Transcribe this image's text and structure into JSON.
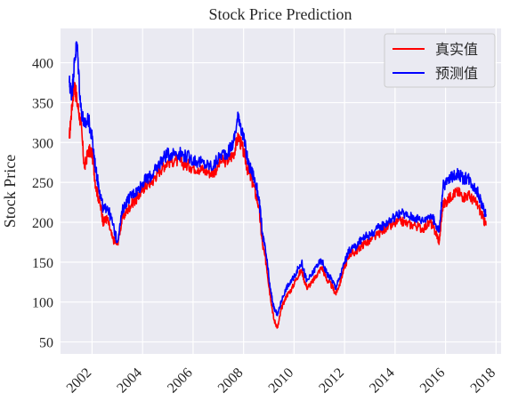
{
  "chart_data": {
    "type": "line",
    "title": "Stock Price Prediction",
    "xlabel": "",
    "ylabel": "Stock Price",
    "xlim": [
      2000.75,
      2018.2
    ],
    "ylim": [
      35,
      443
    ],
    "x_ticks": [
      2002,
      2004,
      2006,
      2008,
      2010,
      2012,
      2014,
      2016,
      2018
    ],
    "y_ticks": [
      50,
      100,
      150,
      200,
      250,
      300,
      350,
      400
    ],
    "grid": true,
    "legend_position": "top-right",
    "colors": {
      "actual": "#ff0000",
      "predicted": "#0000ff",
      "background": "#eaeaf2",
      "grid": "#ffffff"
    },
    "series": [
      {
        "name": "真实值",
        "color": "#ff0000",
        "x": [
          2001.1,
          2001.2,
          2001.3,
          2001.4,
          2001.55,
          2001.7,
          2001.85,
          2002.0,
          2002.15,
          2002.3,
          2002.45,
          2002.6,
          2002.8,
          2003.0,
          2003.2,
          2003.4,
          2003.6,
          2003.8,
          2004.0,
          2004.2,
          2004.4,
          2004.6,
          2004.8,
          2005.0,
          2005.3,
          2005.6,
          2005.9,
          2006.2,
          2006.5,
          2006.8,
          2007.1,
          2007.4,
          2007.6,
          2007.8,
          2008.0,
          2008.2,
          2008.4,
          2008.6,
          2008.75,
          2008.9,
          2009.05,
          2009.2,
          2009.35,
          2009.5,
          2009.7,
          2009.9,
          2010.1,
          2010.3,
          2010.5,
          2010.7,
          2010.9,
          2011.1,
          2011.3,
          2011.5,
          2011.65,
          2011.8,
          2012.0,
          2012.2,
          2012.4,
          2012.6,
          2012.8,
          2013.0,
          2013.3,
          2013.6,
          2013.9,
          2014.2,
          2014.5,
          2014.8,
          2015.1,
          2015.4,
          2015.6,
          2015.75,
          2015.9,
          2016.1,
          2016.3,
          2016.5,
          2016.7,
          2016.9,
          2017.1,
          2017.3,
          2017.5,
          2017.6
        ],
        "values": [
          305,
          345,
          375,
          352,
          325,
          268,
          290,
          287,
          245,
          225,
          200,
          205,
          180,
          172,
          205,
          215,
          225,
          230,
          242,
          248,
          252,
          262,
          270,
          276,
          278,
          274,
          270,
          268,
          264,
          262,
          276,
          278,
          286,
          308,
          288,
          262,
          246,
          220,
          172,
          148,
          110,
          78,
          68,
          92,
          108,
          116,
          130,
          140,
          118,
          124,
          134,
          144,
          128,
          120,
          110,
          122,
          144,
          160,
          162,
          168,
          174,
          176,
          184,
          192,
          196,
          202,
          198,
          196,
          192,
          200,
          188,
          176,
          222,
          228,
          236,
          238,
          232,
          234,
          228,
          220,
          204,
          196
        ]
      },
      {
        "name": "预测值",
        "color": "#0000ff",
        "x": [
          2001.1,
          2001.2,
          2001.3,
          2001.4,
          2001.55,
          2001.7,
          2001.85,
          2002.0,
          2002.15,
          2002.3,
          2002.45,
          2002.6,
          2002.8,
          2003.0,
          2003.2,
          2003.4,
          2003.6,
          2003.8,
          2004.0,
          2004.2,
          2004.4,
          2004.6,
          2004.8,
          2005.0,
          2005.3,
          2005.6,
          2005.9,
          2006.2,
          2006.5,
          2006.8,
          2007.1,
          2007.4,
          2007.6,
          2007.8,
          2008.0,
          2008.2,
          2008.4,
          2008.6,
          2008.75,
          2008.9,
          2009.05,
          2009.2,
          2009.35,
          2009.5,
          2009.7,
          2009.9,
          2010.1,
          2010.3,
          2010.5,
          2010.7,
          2010.9,
          2011.1,
          2011.3,
          2011.5,
          2011.65,
          2011.8,
          2012.0,
          2012.2,
          2012.4,
          2012.6,
          2012.8,
          2013.0,
          2013.3,
          2013.6,
          2013.9,
          2014.2,
          2014.5,
          2014.8,
          2015.1,
          2015.4,
          2015.6,
          2015.75,
          2015.9,
          2016.1,
          2016.3,
          2016.5,
          2016.7,
          2016.9,
          2017.1,
          2017.3,
          2017.5,
          2017.6
        ],
        "values": [
          375,
          360,
          400,
          425,
          345,
          320,
          330,
          305,
          265,
          240,
          215,
          220,
          200,
          175,
          215,
          228,
          235,
          240,
          250,
          255,
          260,
          270,
          280,
          285,
          288,
          285,
          280,
          276,
          272,
          270,
          285,
          288,
          300,
          336,
          305,
          272,
          258,
          232,
          185,
          158,
          118,
          92,
          84,
          102,
          118,
          126,
          138,
          150,
          126,
          134,
          146,
          152,
          136,
          128,
          118,
          130,
          150,
          166,
          168,
          176,
          182,
          184,
          192,
          198,
          205,
          212,
          208,
          206,
          202,
          210,
          198,
          188,
          245,
          252,
          258,
          262,
          254,
          256,
          246,
          236,
          216,
          210
        ]
      }
    ]
  }
}
